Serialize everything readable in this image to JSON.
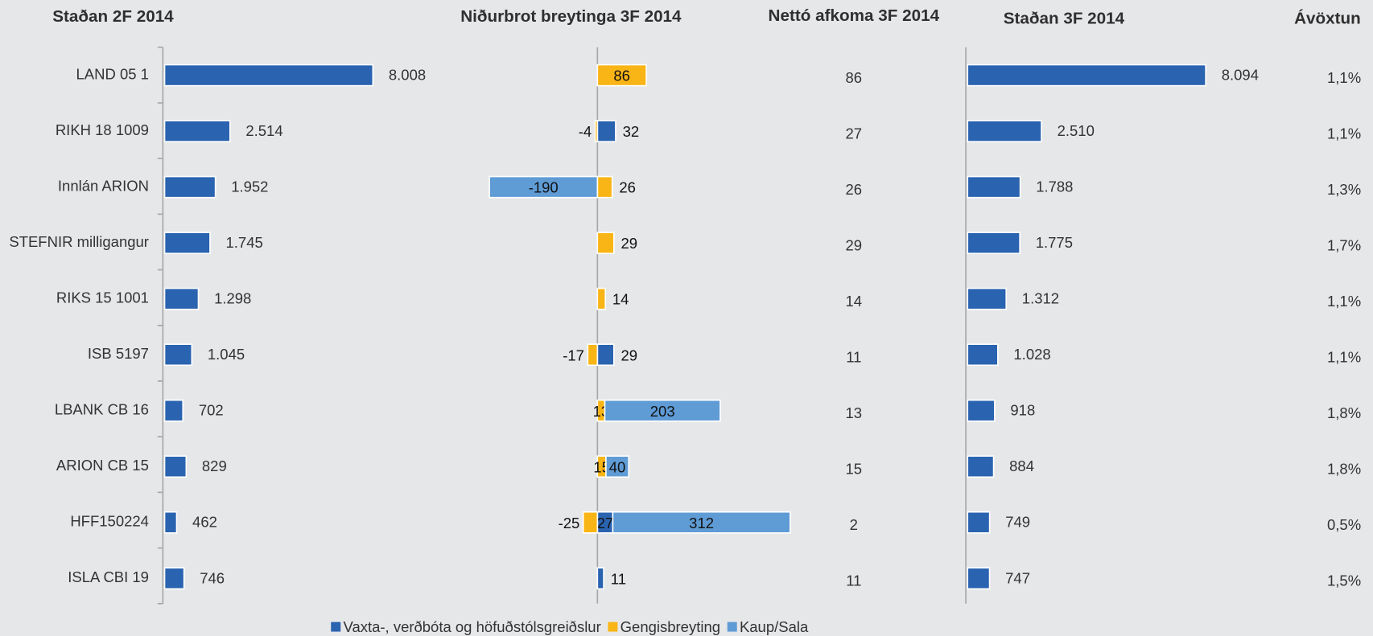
{
  "chart_data": [
    {
      "type": "bar",
      "title": "Staðan 2F 2014",
      "categories": [
        "LAND 05 1",
        "RIKH 18 1009",
        "Innlán ARION",
        "STEFNIR milligangur",
        "RIKS 15 1001",
        "ISB 5197",
        "LBANK CB 16",
        "ARION CB 15",
        "HFF150224",
        "ISLA CBI 19"
      ],
      "values": [
        8008,
        2514,
        1952,
        1745,
        1298,
        1045,
        702,
        829,
        462,
        746
      ],
      "value_labels": [
        "8.008",
        "2.514",
        "1.952",
        "1.745",
        "1.298",
        "1.045",
        "702",
        "829",
        "462",
        "746"
      ],
      "color": "#2a63b0",
      "xlim": [
        0,
        10000
      ]
    },
    {
      "type": "stacked-bar",
      "title": "Niðurbrot breytinga 3F 2014",
      "xlim": [
        -350,
        400
      ],
      "series": [
        {
          "name": "Vaxta-, verðbóta og höfuðstólsgreiðslur",
          "color": "#2a63b0",
          "values": [
            null,
            32,
            null,
            null,
            null,
            29,
            null,
            null,
            27,
            11
          ]
        },
        {
          "name": "Gengisbreyting",
          "color": "#f9b515",
          "values": [
            86,
            -4,
            26,
            29,
            14,
            -17,
            13,
            15,
            -25,
            null
          ]
        },
        {
          "name": "Kaup/Sala",
          "color": "#5f9bd5",
          "values": [
            null,
            null,
            -190,
            null,
            null,
            null,
            203,
            40,
            312,
            null
          ]
        }
      ]
    },
    {
      "type": "text",
      "title": "Nettó afkoma 3F 2014",
      "values": [
        86,
        27,
        26,
        29,
        14,
        11,
        13,
        15,
        2,
        11
      ]
    },
    {
      "type": "bar",
      "title": "Staðan 3F 2014",
      "values": [
        8094,
        2510,
        1788,
        1775,
        1312,
        1028,
        918,
        884,
        749,
        747
      ],
      "value_labels": [
        "8.094",
        "2.510",
        "1.788",
        "1.775",
        "1.312",
        "1.028",
        "918",
        "884",
        "749",
        "747"
      ],
      "color": "#2a63b0",
      "xlim": [
        0,
        10000
      ]
    },
    {
      "type": "text",
      "title": "Ávöxtun",
      "values": [
        1.1,
        1.1,
        1.3,
        1.7,
        1.1,
        1.1,
        1.8,
        1.8,
        0.5,
        1.5
      ],
      "value_labels": [
        "1,1%",
        "1,1%",
        "1,3%",
        "1,7%",
        "1,1%",
        "1,1%",
        "1,8%",
        "1,8%",
        "0,5%",
        "1,5%"
      ]
    }
  ]
}
